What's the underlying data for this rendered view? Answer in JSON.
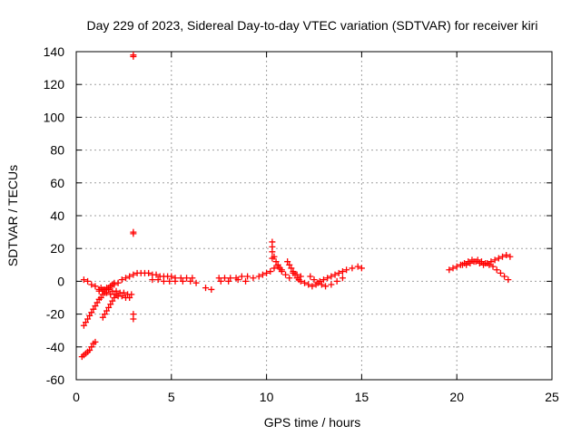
{
  "chart_data": {
    "type": "scatter",
    "title": "Day 229 of 2023, Sidereal Day-to-day VTEC variation (SDTVAR) for receiver kiri",
    "xlabel": "GPS time / hours",
    "ylabel": "SDTVAR / TECUs",
    "xlim": [
      0,
      25
    ],
    "ylim": [
      -60,
      140
    ],
    "xticks": [
      "0",
      "5",
      "10",
      "15",
      "20",
      "25"
    ],
    "yticks": [
      "-60",
      "-40",
      "-20",
      "0",
      "20",
      "40",
      "60",
      "80",
      "100",
      "120",
      "140"
    ],
    "grid": true,
    "marker": "plus",
    "series_color": "#ff0000",
    "x": [
      0.3,
      0.4,
      0.5,
      0.6,
      0.7,
      0.8,
      0.9,
      1.0,
      0.4,
      0.5,
      0.6,
      0.7,
      0.8,
      0.9,
      1.0,
      1.1,
      1.2,
      1.3,
      1.4,
      1.5,
      1.6,
      1.7,
      1.8,
      1.9,
      2.0,
      1.4,
      1.5,
      1.6,
      1.7,
      1.8,
      1.9,
      2.0,
      2.1,
      0.4,
      0.6,
      0.8,
      1.0,
      1.2,
      1.4,
      1.6,
      1.8,
      2.0,
      2.2,
      2.4,
      2.6,
      2.8,
      1.3,
      1.5,
      1.7,
      1.9,
      2.1,
      2.3,
      2.5,
      2.7,
      2.9,
      1.2,
      1.4,
      1.6,
      1.8,
      2.0,
      2.2,
      2.4,
      2.6,
      2.8,
      3.0,
      3.2,
      3.4,
      3.6,
      3.8,
      4.0,
      4.2,
      4.4,
      4.6,
      4.8,
      5.0,
      5.2,
      5.5,
      5.8,
      6.1,
      4.0,
      4.3,
      4.6,
      4.9,
      5.2,
      5.6,
      6.0,
      6.3,
      7.5,
      7.8,
      8.1,
      8.4,
      8.7,
      9.0,
      9.3,
      7.6,
      8.0,
      8.5,
      8.9,
      6.8,
      7.1,
      3.0,
      3.0,
      3.0,
      3.0,
      3.0,
      3.0,
      9.6,
      9.8,
      10.0,
      10.2,
      10.4,
      10.6,
      10.8,
      11.0,
      11.2,
      11.4,
      11.6,
      11.8,
      10.3,
      10.3,
      10.3,
      10.3,
      10.4,
      10.5,
      10.6,
      10.7,
      10.8,
      11.1,
      11.2,
      11.3,
      11.4,
      11.5,
      11.6,
      11.7,
      11.8,
      12.0,
      12.2,
      12.4,
      12.6,
      12.8,
      13.0,
      13.2,
      13.4,
      13.6,
      13.8,
      14.0,
      14.2,
      14.5,
      14.8,
      15.0,
      12.3,
      12.5,
      12.7,
      12.9,
      13.1,
      13.4,
      13.7,
      14.0,
      19.6,
      19.8,
      20.0,
      20.2,
      20.4,
      20.6,
      20.8,
      21.0,
      21.2,
      21.4,
      21.6,
      21.8,
      22.0,
      22.2,
      22.4,
      22.6,
      22.8,
      20.3,
      20.5,
      20.7,
      20.9,
      21.1,
      21.3,
      21.5,
      21.7,
      21.9,
      22.1,
      22.3,
      22.5,
      22.7
    ],
    "y": [
      -46,
      -45,
      -44,
      -43,
      -42,
      -40,
      -38,
      -37,
      -27,
      -25,
      -23,
      -21,
      -19,
      -17,
      -15,
      -13,
      -11,
      -10,
      -8,
      -7,
      -5,
      -4,
      -3,
      -2,
      -1,
      -22,
      -20,
      -18,
      -16,
      -14,
      -12,
      -10,
      -8,
      1,
      0,
      -2,
      -3,
      -5,
      -6,
      -7,
      -8,
      -8,
      -9,
      -9,
      -10,
      -10,
      -4,
      -5,
      -5,
      -6,
      -6,
      -7,
      -7,
      -8,
      -8,
      -6,
      -5,
      -4,
      -3,
      -2,
      -1,
      1,
      2,
      3,
      4,
      5,
      5,
      5,
      5,
      4,
      4,
      3,
      3,
      3,
      3,
      2,
      2,
      2,
      2,
      1,
      1,
      0,
      0,
      0,
      0,
      0,
      -1,
      2,
      2,
      2,
      2,
      3,
      3,
      2,
      0,
      0,
      1,
      0,
      -4,
      -5,
      137,
      138,
      30,
      29,
      -20,
      -23,
      3,
      4,
      5,
      6,
      8,
      10,
      7,
      4,
      2,
      5,
      4,
      3,
      14,
      18,
      21,
      24,
      15,
      12,
      9,
      8,
      6,
      12,
      10,
      8,
      6,
      4,
      2,
      1,
      0,
      -1,
      -2,
      -3,
      -2,
      0,
      1,
      2,
      3,
      4,
      5,
      6,
      7,
      8,
      9,
      8,
      3,
      1,
      -1,
      -2,
      -3,
      -2,
      0,
      2,
      7,
      8,
      9,
      10,
      11,
      12,
      13,
      12,
      11,
      10,
      11,
      12,
      13,
      14,
      15,
      16,
      15,
      10,
      10,
      11,
      12,
      13,
      12,
      11,
      10,
      9,
      7,
      5,
      3,
      1
    ]
  }
}
